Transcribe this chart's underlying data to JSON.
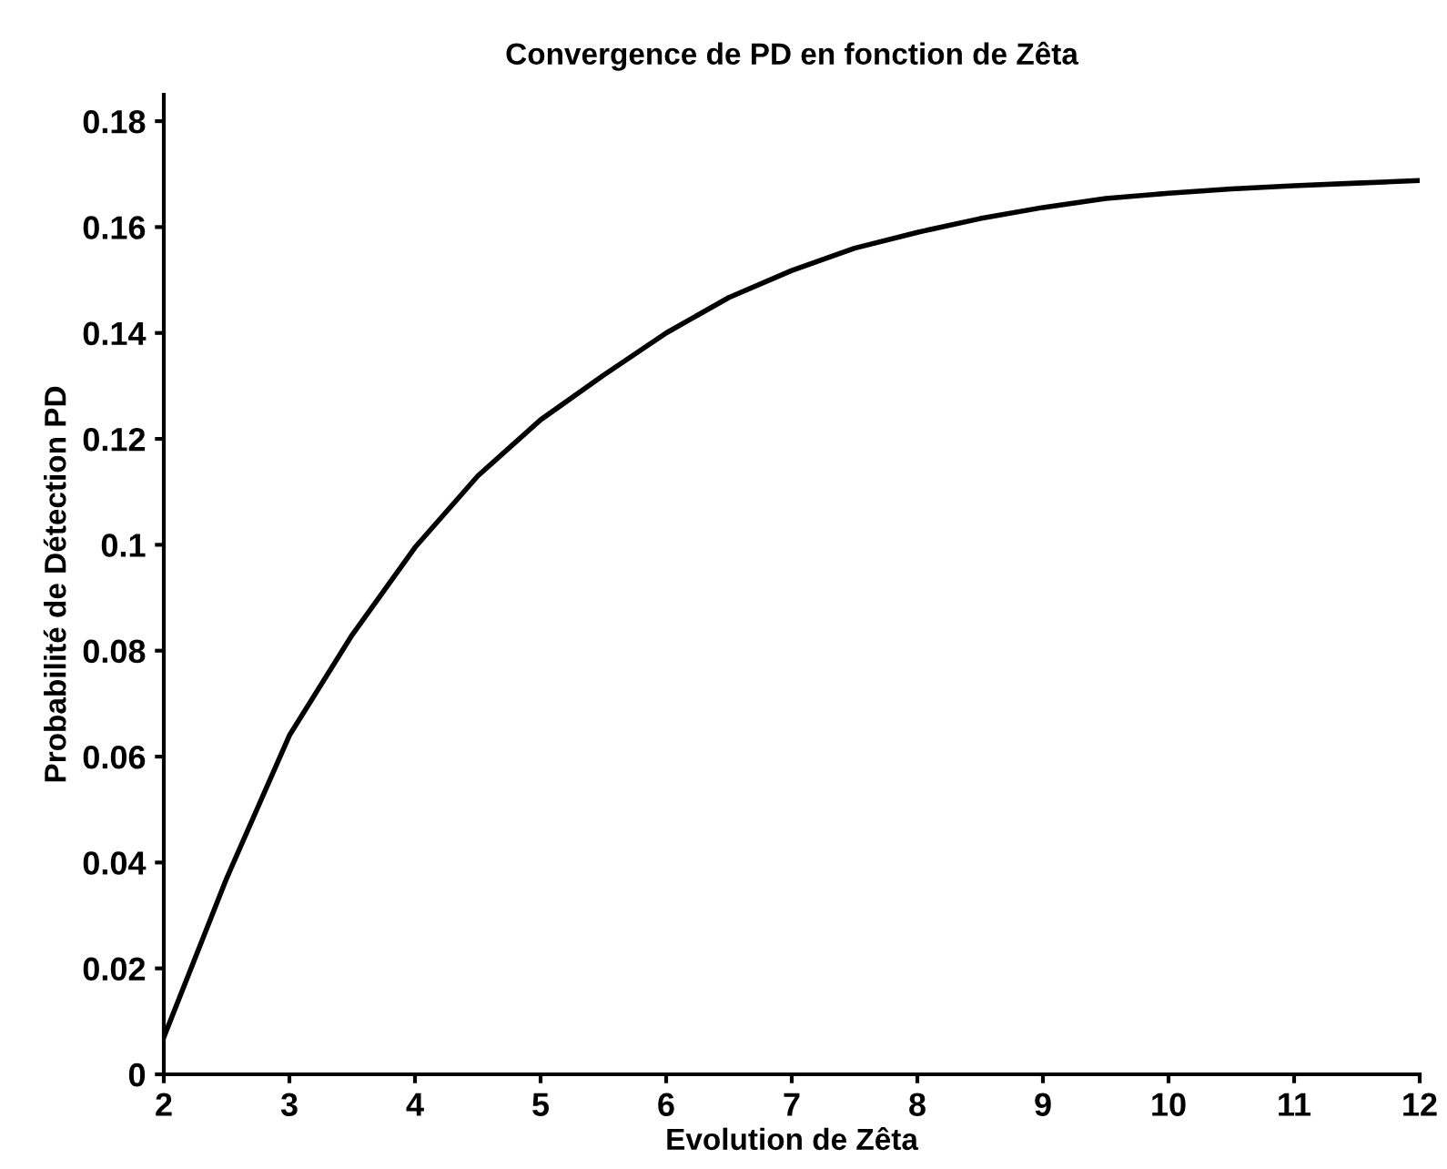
{
  "chart_data": {
    "type": "line",
    "title": "Convergence de PD en fonction de Zêta",
    "xlabel": "Evolution de Zêta",
    "ylabel": "Probabilité de Détection PD",
    "x": [
      2,
      2.5,
      3,
      3.5,
      4,
      4.5,
      5,
      5.5,
      6,
      6.5,
      7,
      7.5,
      8,
      8.5,
      9,
      9.5,
      10,
      10.5,
      11,
      11.5,
      12
    ],
    "series": [
      {
        "color": "#000000",
        "values": [
          0.007,
          0.037,
          0.064,
          0.083,
          0.0995,
          0.113,
          0.1236,
          0.132,
          0.14,
          0.1467,
          0.1518,
          0.156,
          0.159,
          0.1616,
          0.1637,
          0.1654,
          0.1664,
          0.1672,
          0.1678,
          0.1683,
          0.1688
        ]
      }
    ],
    "xlim": [
      2,
      12
    ],
    "ylim": [
      0,
      0.185
    ],
    "xticks": [
      2,
      3,
      4,
      5,
      6,
      7,
      8,
      9,
      10,
      11,
      12
    ],
    "yticks": [
      0,
      0.02,
      0.04,
      0.06,
      0.08,
      0.1,
      0.12,
      0.14,
      0.16,
      0.18
    ],
    "grid": false,
    "legend": false,
    "marker": "none",
    "line_style": "solid"
  }
}
